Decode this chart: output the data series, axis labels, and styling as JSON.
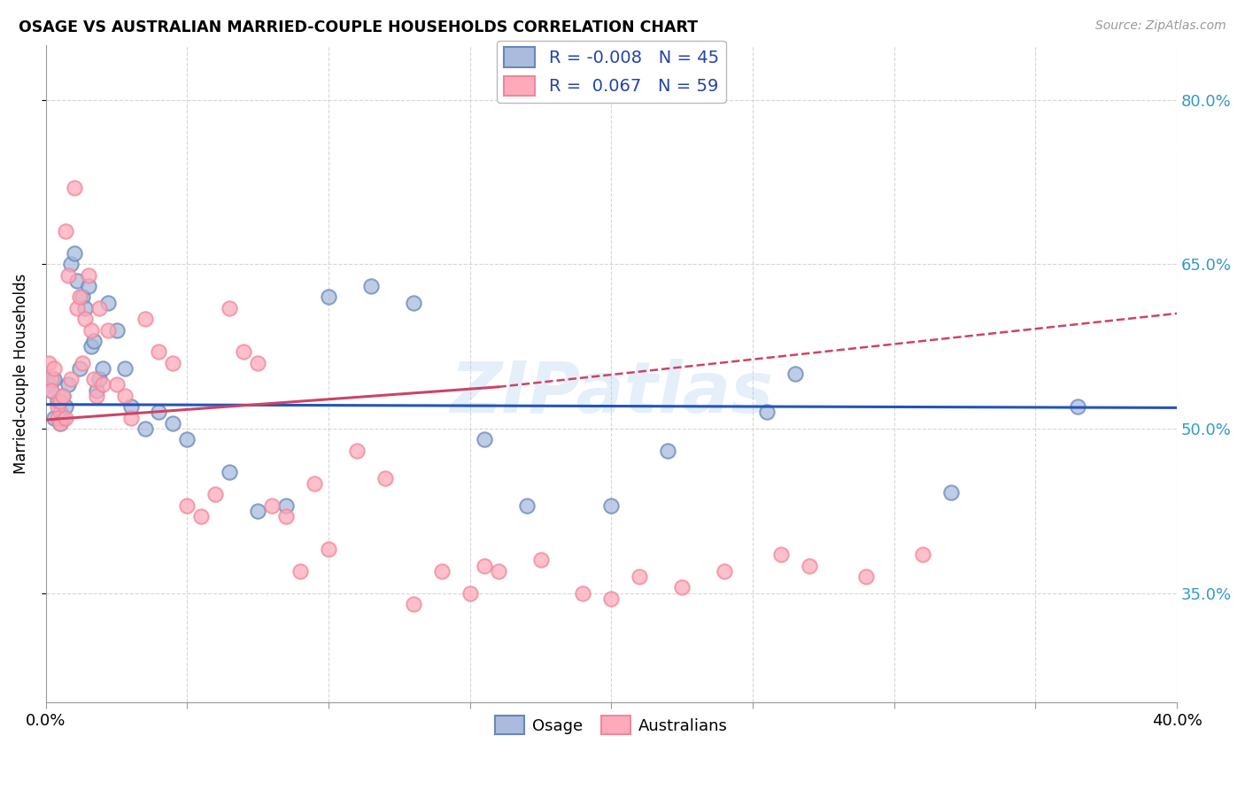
{
  "title": "OSAGE VS AUSTRALIAN MARRIED-COUPLE HOUSEHOLDS CORRELATION CHART",
  "source": "Source: ZipAtlas.com",
  "ylabel": "Married-couple Households",
  "watermark": "ZIPatlas",
  "xlim": [
    0.0,
    0.4
  ],
  "ylim": [
    0.25,
    0.85
  ],
  "ytick_vals": [
    0.35,
    0.5,
    0.65,
    0.8
  ],
  "ytick_labels": [
    "35.0%",
    "50.0%",
    "65.0%",
    "80.0%"
  ],
  "xtick_vals": [
    0.0,
    0.05,
    0.1,
    0.15,
    0.2,
    0.25,
    0.3,
    0.35,
    0.4
  ],
  "xtick_labels": [
    "0.0%",
    "",
    "",
    "",
    "",
    "",
    "",
    "",
    "40.0%"
  ],
  "grid_color": "#cccccc",
  "blue_face": "#aabbdd",
  "blue_edge": "#6688bb",
  "pink_face": "#ffaabb",
  "pink_edge": "#ee8899",
  "trend_blue": "#2255bb",
  "trend_pink": "#cc4466",
  "legend_R_blue": "-0.008",
  "legend_N_blue": "45",
  "legend_R_pink": "0.067",
  "legend_N_pink": "59",
  "blue_trend_y0": 0.522,
  "blue_trend_y1": 0.519,
  "pink_trend_y0": 0.508,
  "pink_trend_solid_xend": 0.16,
  "pink_trend_solid_yend": 0.538,
  "pink_trend_y1": 0.605,
  "osage_x": [
    0.001,
    0.002,
    0.003,
    0.003,
    0.004,
    0.005,
    0.005,
    0.006,
    0.006,
    0.007,
    0.008,
    0.009,
    0.01,
    0.011,
    0.012,
    0.013,
    0.014,
    0.015,
    0.016,
    0.017,
    0.018,
    0.019,
    0.02,
    0.022,
    0.025,
    0.028,
    0.03,
    0.035,
    0.04,
    0.045,
    0.05,
    0.065,
    0.075,
    0.085,
    0.1,
    0.115,
    0.13,
    0.155,
    0.17,
    0.2,
    0.22,
    0.255,
    0.265,
    0.32,
    0.365
  ],
  "osage_y": [
    0.54,
    0.535,
    0.545,
    0.51,
    0.525,
    0.515,
    0.505,
    0.53,
    0.51,
    0.52,
    0.54,
    0.65,
    0.66,
    0.635,
    0.555,
    0.62,
    0.61,
    0.63,
    0.575,
    0.58,
    0.535,
    0.545,
    0.555,
    0.615,
    0.59,
    0.555,
    0.52,
    0.5,
    0.515,
    0.505,
    0.49,
    0.46,
    0.425,
    0.43,
    0.62,
    0.63,
    0.615,
    0.49,
    0.43,
    0.43,
    0.48,
    0.515,
    0.55,
    0.442,
    0.52
  ],
  "australians_x": [
    0.001,
    0.002,
    0.002,
    0.003,
    0.004,
    0.004,
    0.005,
    0.005,
    0.006,
    0.007,
    0.007,
    0.008,
    0.009,
    0.01,
    0.011,
    0.012,
    0.013,
    0.014,
    0.015,
    0.016,
    0.017,
    0.018,
    0.019,
    0.02,
    0.022,
    0.025,
    0.028,
    0.03,
    0.035,
    0.04,
    0.045,
    0.05,
    0.055,
    0.06,
    0.065,
    0.07,
    0.075,
    0.08,
    0.085,
    0.09,
    0.095,
    0.1,
    0.11,
    0.12,
    0.13,
    0.14,
    0.15,
    0.155,
    0.16,
    0.175,
    0.19,
    0.2,
    0.21,
    0.225,
    0.24,
    0.26,
    0.27,
    0.29,
    0.31
  ],
  "australians_y": [
    0.56,
    0.545,
    0.535,
    0.555,
    0.52,
    0.51,
    0.525,
    0.505,
    0.53,
    0.51,
    0.68,
    0.64,
    0.545,
    0.72,
    0.61,
    0.62,
    0.56,
    0.6,
    0.64,
    0.59,
    0.545,
    0.53,
    0.61,
    0.54,
    0.59,
    0.54,
    0.53,
    0.51,
    0.6,
    0.57,
    0.56,
    0.43,
    0.42,
    0.44,
    0.61,
    0.57,
    0.56,
    0.43,
    0.42,
    0.37,
    0.45,
    0.39,
    0.48,
    0.455,
    0.34,
    0.37,
    0.35,
    0.375,
    0.37,
    0.38,
    0.35,
    0.345,
    0.365,
    0.355,
    0.37,
    0.385,
    0.375,
    0.365,
    0.385
  ]
}
